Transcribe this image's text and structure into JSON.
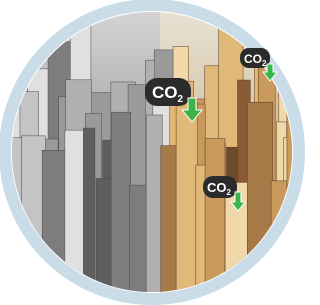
{
  "labels": [
    {
      "text": "CO",
      "sub": "2"
    },
    {
      "text": "CO",
      "sub": "2"
    },
    {
      "text": "CO",
      "sub": "2"
    }
  ]
}
